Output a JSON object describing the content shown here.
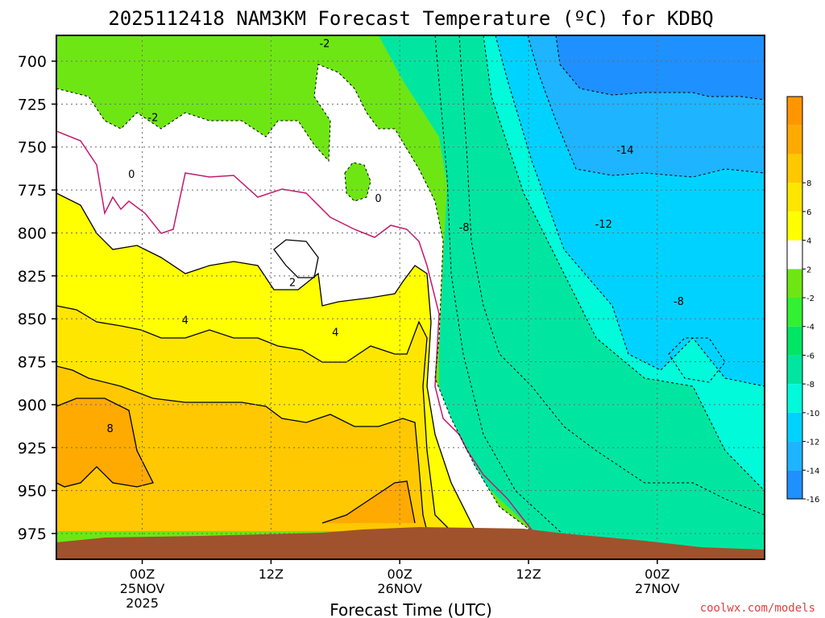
{
  "chart_data": {
    "type": "heatmap",
    "title": "2025112418 NAM3KM Forecast Temperature (ºC) for KDBQ",
    "xlabel": "Forecast Time (UTC)",
    "ylabel": "",
    "x_range_hours": [
      -8,
      58
    ],
    "x_ticks": [
      {
        "hour": 0,
        "lines": [
          "00Z",
          "25NOV",
          "2025"
        ]
      },
      {
        "hour": 12,
        "lines": [
          "12Z"
        ]
      },
      {
        "hour": 24,
        "lines": [
          "00Z",
          "26NOV"
        ]
      },
      {
        "hour": 36,
        "lines": [
          "12Z"
        ]
      },
      {
        "hour": 48,
        "lines": [
          "00Z",
          "27NOV"
        ]
      }
    ],
    "y_ticks_hPa": [
      "700",
      "725",
      "750",
      "775",
      "800",
      "825",
      "850",
      "875",
      "900",
      "925",
      "950",
      "975"
    ],
    "y_range_hPa": [
      990,
      685
    ],
    "colorbar": [
      {
        "label": "-16",
        "color": "#1e90ff"
      },
      {
        "label": "-14",
        "color": "#1eb4ff"
      },
      {
        "label": "-12",
        "color": "#00d2ff"
      },
      {
        "label": "-10",
        "color": "#00fada"
      },
      {
        "label": "-8",
        "color": "#00e6a0"
      },
      {
        "label": "-6",
        "color": "#00e664"
      },
      {
        "label": "-4",
        "color": "#32f032"
      },
      {
        "label": "-2",
        "color": "#6ee614"
      },
      {
        "label": "2",
        "color": "#ffffff"
      },
      {
        "label": "4",
        "color": "#ffff00"
      },
      {
        "label": "6",
        "color": "#ffe600"
      },
      {
        "label": "8",
        "color": "#ffc800"
      },
      {
        "label": "",
        "color": "#ffaa00"
      },
      {
        "label": "",
        "color": "#ff9600"
      }
    ],
    "contour_labels": [
      {
        "text": "-2",
        "hour": 17,
        "hPa": 690
      },
      {
        "text": "-2",
        "hour": 1,
        "hPa": 733
      },
      {
        "text": "0",
        "hour": -1,
        "hPa": 766
      },
      {
        "text": "0",
        "hour": 22,
        "hPa": 780
      },
      {
        "text": "2",
        "hour": 14,
        "hPa": 829
      },
      {
        "text": "4",
        "hour": 4,
        "hPa": 851
      },
      {
        "text": "4",
        "hour": 18,
        "hPa": 858
      },
      {
        "text": "8",
        "hour": -3,
        "hPa": 914
      },
      {
        "text": "-8",
        "hour": 30,
        "hPa": 797
      },
      {
        "text": "-12",
        "hour": 43,
        "hPa": 795
      },
      {
        "text": "-14",
        "hour": 45,
        "hPa": 752
      },
      {
        "text": "-8",
        "hour": 50,
        "hPa": 840
      }
    ]
  },
  "credit": "coolwx.com/models"
}
